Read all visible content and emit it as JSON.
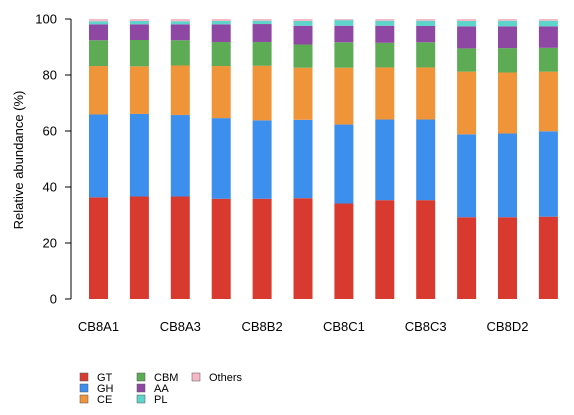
{
  "chart_data": {
    "type": "bar",
    "stacked": true,
    "ylabel": "Relative abundance (%)",
    "xlabel": "",
    "ylim": [
      0,
      100
    ],
    "yticks": [
      0,
      20,
      40,
      60,
      80,
      100
    ],
    "grid": false,
    "legend_position": "bottom-left",
    "categories": [
      "CB8A1",
      "",
      "CB8A3",
      "",
      "CB8B2",
      "",
      "CB8C1",
      "",
      "CB8C3",
      "",
      "CB8D2",
      ""
    ],
    "bar_count": 12,
    "series": [
      {
        "name": "GT",
        "color": "#d93a2f",
        "values": [
          36.3,
          36.6,
          36.6,
          35.8,
          35.8,
          36.0,
          34.1,
          35.3,
          35.3,
          29.2,
          29.2,
          29.4
        ]
      },
      {
        "name": "GH",
        "color": "#3d8fee",
        "values": [
          29.6,
          29.5,
          29.1,
          28.8,
          28.0,
          28.0,
          28.2,
          28.8,
          28.8,
          29.6,
          29.9,
          30.5
        ]
      },
      {
        "name": "CE",
        "color": "#f0943a",
        "values": [
          17.3,
          17.0,
          17.7,
          18.6,
          19.5,
          18.6,
          20.3,
          18.6,
          18.6,
          22.4,
          21.8,
          21.3
        ]
      },
      {
        "name": "CBM",
        "color": "#5dab55",
        "values": [
          9.2,
          9.4,
          9.0,
          8.6,
          8.5,
          8.3,
          9.1,
          8.8,
          9.0,
          8.3,
          8.7,
          8.5
        ]
      },
      {
        "name": "AA",
        "color": "#8e48a3",
        "values": [
          5.7,
          5.6,
          5.7,
          6.3,
          6.4,
          6.7,
          5.9,
          6.1,
          5.8,
          7.9,
          7.8,
          7.7
        ]
      },
      {
        "name": "PL",
        "color": "#5fd4cb",
        "values": [
          1.1,
          1.2,
          1.1,
          1.2,
          1.2,
          1.7,
          2.0,
          1.8,
          1.9,
          1.9,
          2.0,
          2.0
        ]
      },
      {
        "name": "Others",
        "color": "#f5b8c6",
        "values": [
          0.8,
          0.7,
          0.8,
          0.7,
          0.6,
          0.7,
          0.4,
          0.6,
          0.6,
          0.7,
          0.6,
          0.6
        ]
      }
    ]
  }
}
